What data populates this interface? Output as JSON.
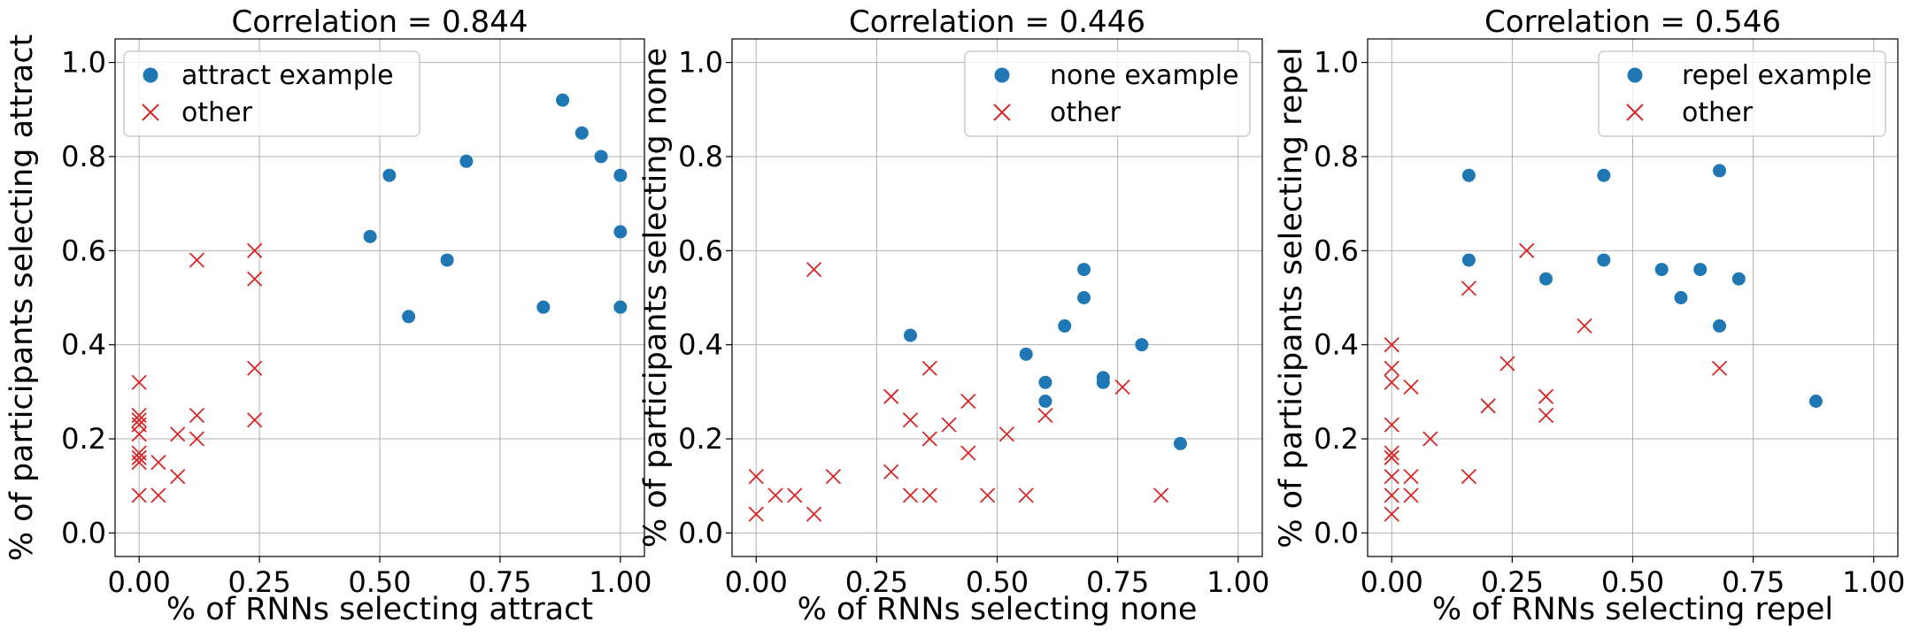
{
  "figure": {
    "panels": [
      {
        "title": "Correlation = 0.844",
        "xlabel": "% of RNNs selecting attract",
        "ylabel": "% of participants selecting attract",
        "legend": [
          "attract example",
          "other"
        ]
      },
      {
        "title": "Correlation = 0.446",
        "xlabel": "% of RNNs selecting none",
        "ylabel": "% of participants selecting none",
        "legend": [
          "none example",
          "other"
        ]
      },
      {
        "title": "Correlation = 0.546",
        "xlabel": "% of RNNs selecting repel",
        "ylabel": "% of participants selecting repel",
        "legend": [
          "repel example",
          "other"
        ]
      }
    ]
  },
  "colors": {
    "example": "#1f77b4",
    "other": "#d62728",
    "grid": "#b0b0b0"
  },
  "chart_data": [
    {
      "type": "scatter",
      "title": "Correlation = 0.844",
      "xlabel": "% of RNNs selecting attract",
      "ylabel": "% of participants selecting attract",
      "xlim": [
        -0.05,
        1.05
      ],
      "ylim": [
        -0.05,
        1.05
      ],
      "xticks": [
        "0.00",
        "0.25",
        "0.50",
        "0.75",
        "1.00"
      ],
      "yticks": [
        "0.0",
        "0.2",
        "0.4",
        "0.6",
        "0.8",
        "1.0"
      ],
      "xtick_values": [
        0,
        0.25,
        0.5,
        0.75,
        1.0
      ],
      "ytick_values": [
        0,
        0.2,
        0.4,
        0.6,
        0.8,
        1.0
      ],
      "grid": true,
      "legend_position": "top-left",
      "series": [
        {
          "name": "attract example",
          "marker": "circle",
          "color": "#1f77b4",
          "points": [
            [
              0.88,
              0.92
            ],
            [
              0.92,
              0.85
            ],
            [
              0.96,
              0.8
            ],
            [
              1.0,
              0.76
            ],
            [
              1.0,
              0.64
            ],
            [
              1.0,
              0.48
            ],
            [
              0.68,
              0.79
            ],
            [
              0.52,
              0.76
            ],
            [
              0.48,
              0.63
            ],
            [
              0.64,
              0.58
            ],
            [
              0.56,
              0.46
            ],
            [
              0.84,
              0.48
            ]
          ]
        },
        {
          "name": "other",
          "marker": "x",
          "color": "#d62728",
          "points": [
            [
              0.12,
              0.58
            ],
            [
              0.24,
              0.6
            ],
            [
              0.24,
              0.54
            ],
            [
              0.24,
              0.35
            ],
            [
              0.24,
              0.24
            ],
            [
              0.12,
              0.25
            ],
            [
              0.12,
              0.2
            ],
            [
              0.08,
              0.21
            ],
            [
              0.08,
              0.12
            ],
            [
              0.04,
              0.15
            ],
            [
              0.04,
              0.08
            ],
            [
              0.0,
              0.32
            ],
            [
              0.0,
              0.25
            ],
            [
              0.0,
              0.24
            ],
            [
              0.0,
              0.23
            ],
            [
              0.0,
              0.21
            ],
            [
              0.0,
              0.17
            ],
            [
              0.0,
              0.16
            ],
            [
              0.0,
              0.15
            ],
            [
              0.0,
              0.08
            ]
          ]
        }
      ]
    },
    {
      "type": "scatter",
      "title": "Correlation = 0.446",
      "xlabel": "% of RNNs selecting none",
      "ylabel": "% of participants selecting none",
      "xlim": [
        -0.05,
        1.05
      ],
      "ylim": [
        -0.05,
        1.05
      ],
      "xticks": [
        "0.00",
        "0.25",
        "0.50",
        "0.75",
        "1.00"
      ],
      "yticks": [
        "0.0",
        "0.2",
        "0.4",
        "0.6",
        "0.8",
        "1.0"
      ],
      "xtick_values": [
        0,
        0.25,
        0.5,
        0.75,
        1.0
      ],
      "ytick_values": [
        0,
        0.2,
        0.4,
        0.6,
        0.8,
        1.0
      ],
      "grid": true,
      "legend_position": "top-right",
      "series": [
        {
          "name": "none example",
          "marker": "circle",
          "color": "#1f77b4",
          "points": [
            [
              0.32,
              0.42
            ],
            [
              0.56,
              0.38
            ],
            [
              0.6,
              0.32
            ],
            [
              0.6,
              0.28
            ],
            [
              0.64,
              0.44
            ],
            [
              0.68,
              0.56
            ],
            [
              0.68,
              0.5
            ],
            [
              0.72,
              0.33
            ],
            [
              0.72,
              0.32
            ],
            [
              0.8,
              0.4
            ],
            [
              0.88,
              0.19
            ]
          ]
        },
        {
          "name": "other",
          "marker": "x",
          "color": "#d62728",
          "points": [
            [
              0.12,
              0.56
            ],
            [
              0.0,
              0.12
            ],
            [
              0.0,
              0.04
            ],
            [
              0.04,
              0.08
            ],
            [
              0.08,
              0.08
            ],
            [
              0.12,
              0.04
            ],
            [
              0.16,
              0.12
            ],
            [
              0.28,
              0.29
            ],
            [
              0.28,
              0.13
            ],
            [
              0.32,
              0.24
            ],
            [
              0.32,
              0.08
            ],
            [
              0.36,
              0.35
            ],
            [
              0.36,
              0.2
            ],
            [
              0.36,
              0.08
            ],
            [
              0.4,
              0.23
            ],
            [
              0.44,
              0.28
            ],
            [
              0.44,
              0.17
            ],
            [
              0.48,
              0.08
            ],
            [
              0.52,
              0.21
            ],
            [
              0.56,
              0.08
            ],
            [
              0.6,
              0.25
            ],
            [
              0.76,
              0.31
            ],
            [
              0.84,
              0.08
            ]
          ]
        }
      ]
    },
    {
      "type": "scatter",
      "title": "Correlation = 0.546",
      "xlabel": "% of RNNs selecting repel",
      "ylabel": "% of participants selecting repel",
      "xlim": [
        -0.05,
        1.05
      ],
      "ylim": [
        -0.05,
        1.05
      ],
      "xticks": [
        "0.00",
        "0.25",
        "0.50",
        "0.75",
        "1.00"
      ],
      "yticks": [
        "0.0",
        "0.2",
        "0.4",
        "0.6",
        "0.8",
        "1.0"
      ],
      "xtick_values": [
        0,
        0.25,
        0.5,
        0.75,
        1.0
      ],
      "ytick_values": [
        0,
        0.2,
        0.4,
        0.6,
        0.8,
        1.0
      ],
      "grid": true,
      "legend_position": "top-right",
      "series": [
        {
          "name": "repel example",
          "marker": "circle",
          "color": "#1f77b4",
          "points": [
            [
              0.16,
              0.76
            ],
            [
              0.16,
              0.58
            ],
            [
              0.32,
              0.54
            ],
            [
              0.44,
              0.76
            ],
            [
              0.44,
              0.58
            ],
            [
              0.56,
              0.56
            ],
            [
              0.6,
              0.5
            ],
            [
              0.64,
              0.56
            ],
            [
              0.68,
              0.77
            ],
            [
              0.68,
              0.44
            ],
            [
              0.72,
              0.54
            ],
            [
              0.88,
              0.28
            ]
          ]
        },
        {
          "name": "other",
          "marker": "x",
          "color": "#d62728",
          "points": [
            [
              0.0,
              0.4
            ],
            [
              0.0,
              0.35
            ],
            [
              0.0,
              0.32
            ],
            [
              0.0,
              0.23
            ],
            [
              0.0,
              0.17
            ],
            [
              0.0,
              0.16
            ],
            [
              0.0,
              0.12
            ],
            [
              0.0,
              0.08
            ],
            [
              0.0,
              0.04
            ],
            [
              0.04,
              0.31
            ],
            [
              0.04,
              0.12
            ],
            [
              0.04,
              0.08
            ],
            [
              0.08,
              0.2
            ],
            [
              0.16,
              0.52
            ],
            [
              0.16,
              0.12
            ],
            [
              0.2,
              0.27
            ],
            [
              0.24,
              0.36
            ],
            [
              0.28,
              0.6
            ],
            [
              0.32,
              0.29
            ],
            [
              0.32,
              0.25
            ],
            [
              0.4,
              0.44
            ],
            [
              0.68,
              0.35
            ]
          ]
        }
      ]
    }
  ]
}
